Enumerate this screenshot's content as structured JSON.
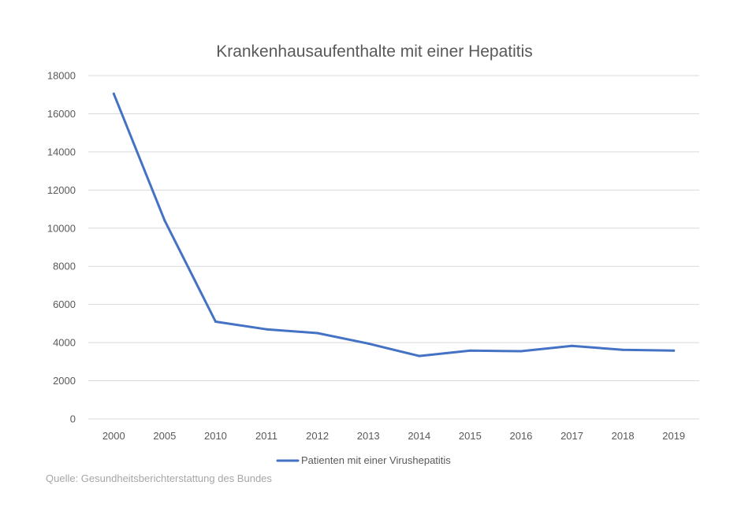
{
  "chart_data": {
    "type": "line",
    "title": "Krankenhausaufenthalte mit einer Hepatitis",
    "xlabel": "",
    "ylabel": "",
    "categories": [
      "2000",
      "2005",
      "2010",
      "2011",
      "2012",
      "2013",
      "2014",
      "2015",
      "2016",
      "2017",
      "2018",
      "2019"
    ],
    "series": [
      {
        "name": "Patienten mit einer Virushepatitis",
        "color": "#4472c4",
        "values": [
          17050,
          10400,
          5100,
          4700,
          4500,
          3950,
          3300,
          3580,
          3550,
          3830,
          3620,
          3580
        ]
      }
    ],
    "ylim": [
      0,
      18000
    ],
    "yticks": [
      "0",
      "2000",
      "4000",
      "6000",
      "8000",
      "10000",
      "12000",
      "14000",
      "16000",
      "18000"
    ],
    "grid": true,
    "legend": "bottom"
  },
  "source": {
    "text": "Quelle: Gesundheitsberichterstattung des Bundes"
  },
  "colors": {
    "grid": "#d9d9d9",
    "text": "#595959",
    "source": "#a6a6a6"
  }
}
